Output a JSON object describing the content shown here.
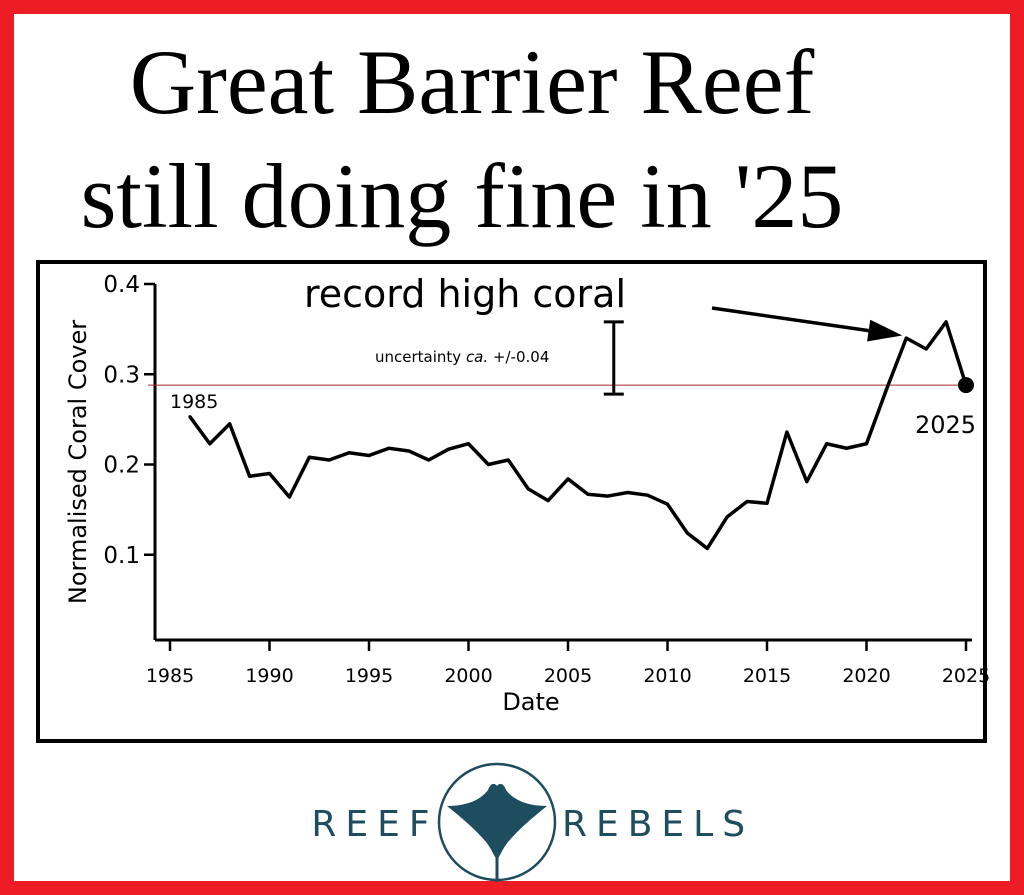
{
  "headline": {
    "line1": "Great Barrier Reef",
    "line2": "still doing fine in '25"
  },
  "chart_data": {
    "type": "line",
    "title": "",
    "xlabel": "Date",
    "ylabel": "Normalised Coral Cover",
    "xlim": [
      1985,
      2025
    ],
    "ylim": [
      0.0,
      0.4
    ],
    "x_ticks": [
      1985,
      1990,
      1995,
      2000,
      2005,
      2010,
      2015,
      2020,
      2025
    ],
    "y_ticks": [
      0.1,
      0.2,
      0.3,
      0.4
    ],
    "x_tick_labels": [
      "1985",
      "1990",
      "1995",
      "2000",
      "2005",
      "2010",
      "2015",
      "2020",
      "2025"
    ],
    "y_tick_labels": [
      "0.1",
      "0.2",
      "0.3",
      "0.4"
    ],
    "grid": false,
    "series": [
      {
        "color": "#000000",
        "x": [
          1986,
          1987,
          1988,
          1989,
          1990,
          1991,
          1992,
          1993,
          1994,
          1995,
          1996,
          1997,
          1998,
          1999,
          2000,
          2001,
          2002,
          2003,
          2004,
          2005,
          2006,
          2007,
          2008,
          2009,
          2010,
          2011,
          2012,
          2013,
          2014,
          2015,
          2016,
          2017,
          2018,
          2019,
          2020,
          2021,
          2022,
          2023,
          2024,
          2025
        ],
        "y": [
          0.253,
          0.223,
          0.245,
          0.187,
          0.19,
          0.164,
          0.208,
          0.205,
          0.213,
          0.21,
          0.218,
          0.215,
          0.205,
          0.217,
          0.223,
          0.2,
          0.205,
          0.173,
          0.16,
          0.184,
          0.167,
          0.165,
          0.169,
          0.166,
          0.156,
          0.124,
          0.107,
          0.142,
          0.159,
          0.157,
          0.236,
          0.181,
          0.223,
          0.218,
          0.223,
          0.283,
          0.34,
          0.328,
          0.358,
          0.288
        ]
      }
    ],
    "reference_line": {
      "y": 0.288,
      "color": "#a52a2a"
    },
    "endpoint_marker": {
      "x": 2025,
      "y": 0.288
    },
    "uncertainty_bar": {
      "x": 2007.3,
      "center": 0.318,
      "half_width": 0.04
    },
    "annotations": {
      "start_label": "1985",
      "end_label": "2025",
      "record_label": "record high coral",
      "uncertainty_prefix": "uncertainty ",
      "uncertainty_ca": "ca.",
      "uncertainty_suffix": " +/-0.04",
      "arrow_target": {
        "x": 2021.8,
        "y": 0.343
      }
    }
  },
  "logo": {
    "left_word": "REEF",
    "right_word": "REBELS",
    "color": "#1e4d5f",
    "icon": "manta-ray-icon"
  }
}
